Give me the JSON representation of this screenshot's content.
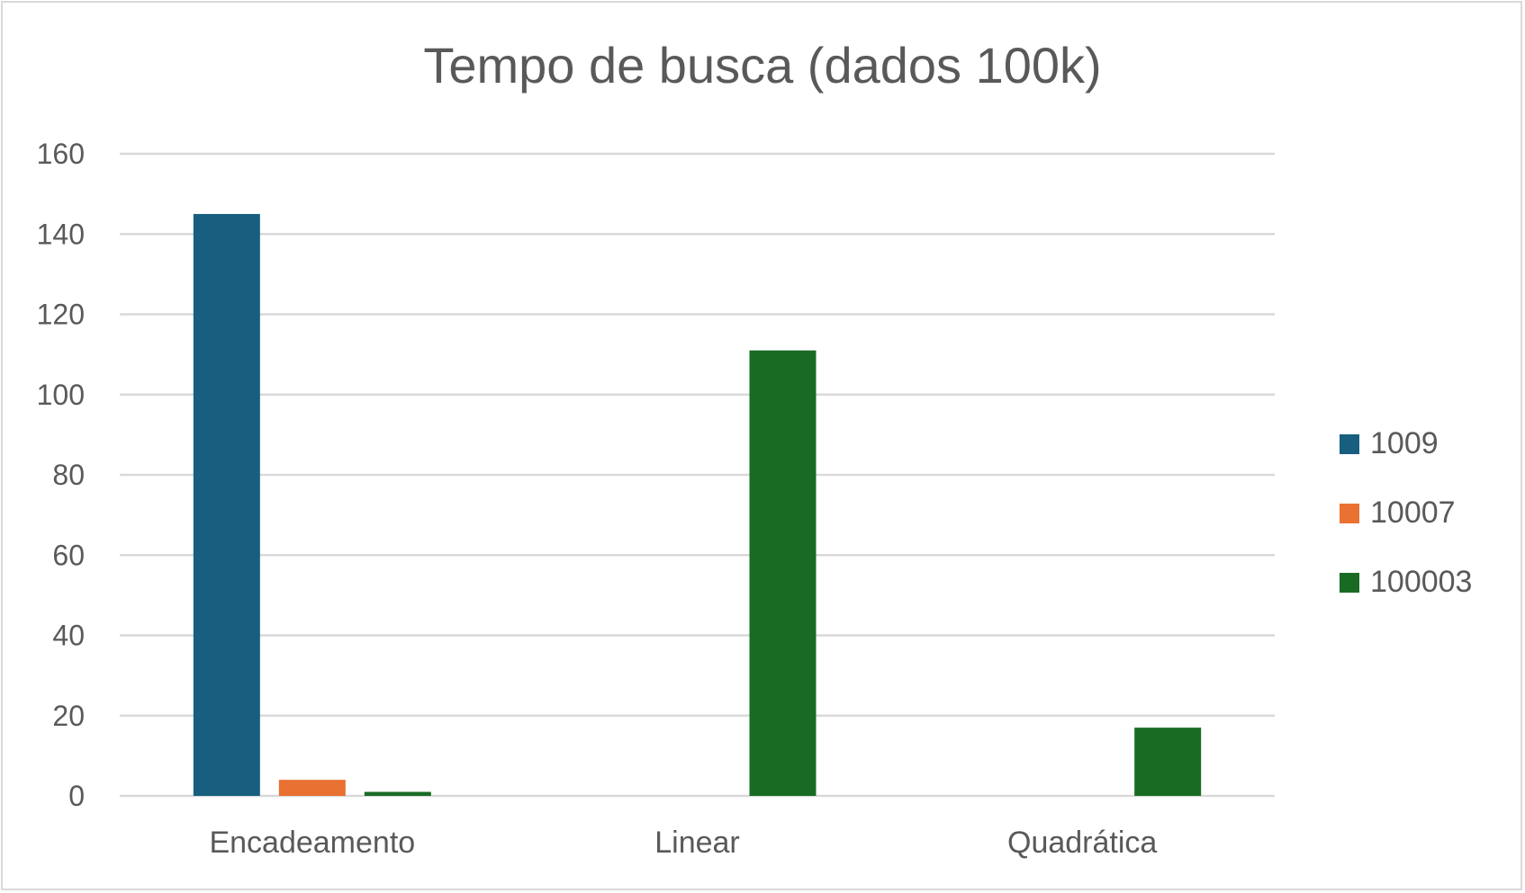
{
  "chart_data": {
    "type": "bar",
    "title": "Tempo de busca (dados 100k)",
    "xlabel": "",
    "ylabel": "",
    "categories": [
      "Encadeamento",
      "Linear",
      "Quadrática"
    ],
    "series": [
      {
        "name": "1009",
        "color": "#175e7f",
        "values": [
          145,
          0,
          0
        ]
      },
      {
        "name": "10007",
        "color": "#e97132",
        "values": [
          4,
          0,
          0
        ]
      },
      {
        "name": "100003",
        "color": "#196b24",
        "values": [
          1,
          111,
          17
        ]
      }
    ],
    "ylim": [
      0,
      160
    ],
    "yticks": [
      0,
      20,
      40,
      60,
      80,
      100,
      120,
      140,
      160
    ],
    "grid": true,
    "legend_position": "right"
  }
}
